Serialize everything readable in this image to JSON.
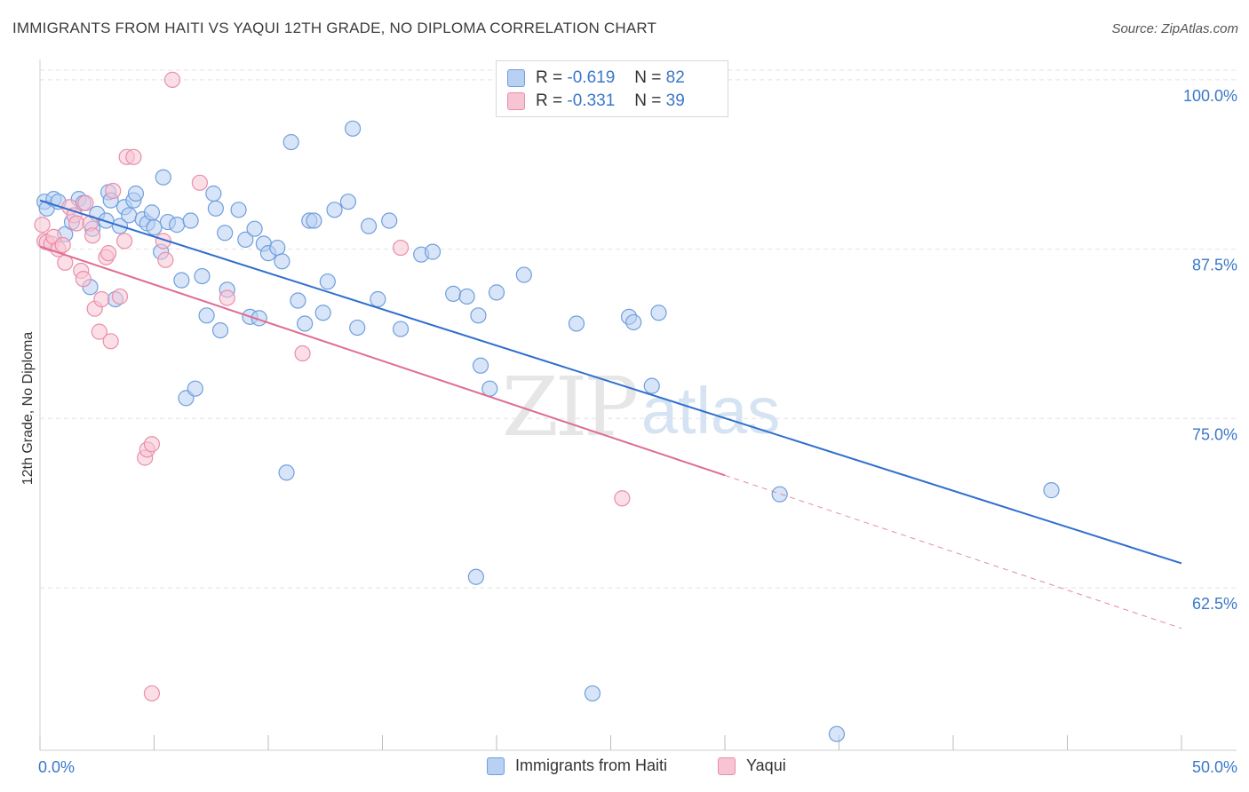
{
  "title": "IMMIGRANTS FROM HAITI VS YAQUI 12TH GRADE, NO DIPLOMA CORRELATION CHART",
  "source": "Source: ZipAtlas.com",
  "watermark": {
    "zip": "ZIP",
    "atlas": "atlas"
  },
  "colors": {
    "haiti_fill": "#b8d0f2",
    "haiti_stroke": "#6f9fdc",
    "haiti_line": "#2e6fce",
    "yaqui_fill": "#f7c4d3",
    "yaqui_stroke": "#ea8eaa",
    "yaqui_line": "#e06c92",
    "tick_label": "#3a77c9",
    "grid": "#e3e3e3"
  },
  "legend_top": {
    "r_label": "R =",
    "n_label": "N =",
    "rows": [
      {
        "r": "-0.619",
        "n": "82"
      },
      {
        "r": "-0.331",
        "n": "39"
      }
    ]
  },
  "chart_data": {
    "type": "scatter",
    "title": "IMMIGRANTS FROM HAITI VS YAQUI 12TH GRADE, NO DIPLOMA CORRELATION CHART",
    "xlabel": "",
    "ylabel": "12th Grade, No Diploma",
    "xlim": [
      0,
      50
    ],
    "ylim": [
      50.5,
      101.5
    ],
    "x_tick_labels": [
      "0.0%",
      "50.0%"
    ],
    "y_ticks": [
      62.5,
      75.0,
      87.5,
      100.0
    ],
    "y_tick_labels": [
      "62.5%",
      "75.0%",
      "87.5%",
      "100.0%"
    ],
    "grid": true,
    "legend_position": "bottom",
    "series": [
      {
        "name": "Immigrants from Haiti",
        "r": -0.619,
        "n": 82,
        "trend": {
          "x": [
            0,
            50
          ],
          "y": [
            91.1,
            64.3
          ]
        },
        "points": [
          [
            0.2,
            91.0
          ],
          [
            0.3,
            90.5
          ],
          [
            0.6,
            91.2
          ],
          [
            0.8,
            91.0
          ],
          [
            1.1,
            88.6
          ],
          [
            1.4,
            89.5
          ],
          [
            1.7,
            91.2
          ],
          [
            1.9,
            90.9
          ],
          [
            2.2,
            84.7
          ],
          [
            2.3,
            89.0
          ],
          [
            2.5,
            90.1
          ],
          [
            2.9,
            89.6
          ],
          [
            3.0,
            91.7
          ],
          [
            3.1,
            91.1
          ],
          [
            3.3,
            83.8
          ],
          [
            3.5,
            89.2
          ],
          [
            3.7,
            90.6
          ],
          [
            3.9,
            90.0
          ],
          [
            4.1,
            91.1
          ],
          [
            4.2,
            91.6
          ],
          [
            4.5,
            89.7
          ],
          [
            4.7,
            89.4
          ],
          [
            4.9,
            90.2
          ],
          [
            5.0,
            89.1
          ],
          [
            5.3,
            87.3
          ],
          [
            5.4,
            92.8
          ],
          [
            5.6,
            89.5
          ],
          [
            6.0,
            89.3
          ],
          [
            6.2,
            85.2
          ],
          [
            6.4,
            76.5
          ],
          [
            6.6,
            89.6
          ],
          [
            6.8,
            77.2
          ],
          [
            7.1,
            85.5
          ],
          [
            7.3,
            82.6
          ],
          [
            7.6,
            91.6
          ],
          [
            7.7,
            90.5
          ],
          [
            7.9,
            81.5
          ],
          [
            8.1,
            88.7
          ],
          [
            8.2,
            84.5
          ],
          [
            8.7,
            90.4
          ],
          [
            9.0,
            88.2
          ],
          [
            9.2,
            82.5
          ],
          [
            9.4,
            89.0
          ],
          [
            9.6,
            82.4
          ],
          [
            9.8,
            87.9
          ],
          [
            10.0,
            87.2
          ],
          [
            10.4,
            87.6
          ],
          [
            10.6,
            86.6
          ],
          [
            10.8,
            71.0
          ],
          [
            11.0,
            95.4
          ],
          [
            11.3,
            83.7
          ],
          [
            11.6,
            82.0
          ],
          [
            11.8,
            89.6
          ],
          [
            12.0,
            89.6
          ],
          [
            12.4,
            82.8
          ],
          [
            12.6,
            85.1
          ],
          [
            12.9,
            90.4
          ],
          [
            13.5,
            91.0
          ],
          [
            13.7,
            96.4
          ],
          [
            13.9,
            81.7
          ],
          [
            14.4,
            89.2
          ],
          [
            14.8,
            83.8
          ],
          [
            15.3,
            89.6
          ],
          [
            15.8,
            81.6
          ],
          [
            16.7,
            87.1
          ],
          [
            17.2,
            87.3
          ],
          [
            18.1,
            84.2
          ],
          [
            18.7,
            84.0
          ],
          [
            19.2,
            82.6
          ],
          [
            19.1,
            63.3
          ],
          [
            19.3,
            78.9
          ],
          [
            19.7,
            77.2
          ],
          [
            20.0,
            84.3
          ],
          [
            21.2,
            85.6
          ],
          [
            23.5,
            82.0
          ],
          [
            24.2,
            54.7
          ],
          [
            25.8,
            82.5
          ],
          [
            26.0,
            82.1
          ],
          [
            26.8,
            77.4
          ],
          [
            27.1,
            82.8
          ],
          [
            32.4,
            69.4
          ],
          [
            34.9,
            51.7
          ],
          [
            44.3,
            69.7
          ]
        ]
      },
      {
        "name": "Yaqui",
        "r": -0.331,
        "n": 39,
        "trend": {
          "x": [
            0,
            30
          ],
          "y": [
            87.7,
            70.8
          ]
        },
        "trend_dashed": {
          "x": [
            30,
            50
          ],
          "y": [
            70.8,
            59.5
          ]
        },
        "points": [
          [
            0.1,
            89.3
          ],
          [
            0.2,
            88.1
          ],
          [
            0.3,
            88.0
          ],
          [
            0.5,
            87.9
          ],
          [
            0.6,
            88.4
          ],
          [
            0.8,
            87.5
          ],
          [
            1.0,
            87.8
          ],
          [
            1.1,
            86.5
          ],
          [
            1.3,
            90.6
          ],
          [
            1.5,
            90.0
          ],
          [
            1.6,
            89.4
          ],
          [
            1.8,
            85.9
          ],
          [
            1.9,
            85.3
          ],
          [
            2.0,
            90.9
          ],
          [
            2.2,
            89.4
          ],
          [
            2.3,
            88.5
          ],
          [
            2.4,
            83.1
          ],
          [
            2.6,
            81.4
          ],
          [
            2.7,
            83.8
          ],
          [
            2.9,
            86.9
          ],
          [
            3.0,
            87.2
          ],
          [
            3.1,
            80.7
          ],
          [
            3.2,
            91.8
          ],
          [
            3.5,
            84.0
          ],
          [
            3.7,
            88.1
          ],
          [
            3.8,
            94.3
          ],
          [
            4.1,
            94.3
          ],
          [
            4.6,
            72.1
          ],
          [
            4.7,
            72.7
          ],
          [
            4.9,
            73.1
          ],
          [
            4.9,
            54.7
          ],
          [
            5.4,
            88.1
          ],
          [
            5.5,
            86.7
          ],
          [
            5.8,
            100.0
          ],
          [
            7.0,
            92.4
          ],
          [
            8.2,
            83.9
          ],
          [
            11.5,
            79.8
          ],
          [
            15.8,
            87.6
          ],
          [
            25.5,
            69.1
          ]
        ]
      }
    ]
  }
}
